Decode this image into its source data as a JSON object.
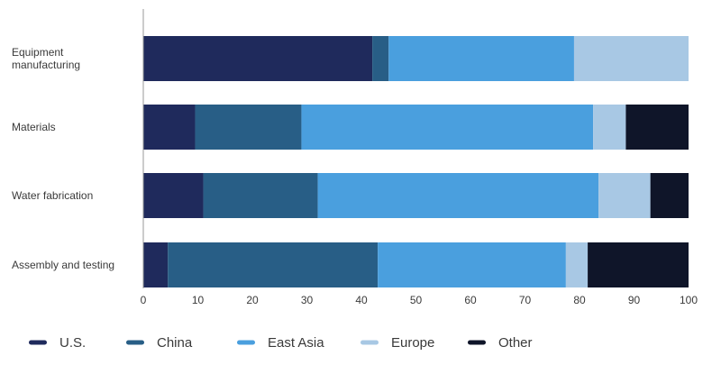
{
  "chart_data": {
    "type": "bar",
    "orientation": "horizontal",
    "stacked": true,
    "categories": [
      [
        "Equipment",
        "manufacturing"
      ],
      [
        "Materials"
      ],
      [
        "Water fabrication"
      ],
      [
        "Assembly and testing"
      ]
    ],
    "series": [
      {
        "name": "U.S.",
        "color": "#1f2a5c",
        "values": [
          42,
          9.5,
          11,
          4.5
        ]
      },
      {
        "name": "China",
        "color": "#285e86",
        "values": [
          3,
          19.5,
          21,
          38.5
        ]
      },
      {
        "name": "East Asia",
        "color": "#4a9fde",
        "values": [
          34,
          53.5,
          51.5,
          34.5
        ]
      },
      {
        "name": "Europe",
        "color": "#a8c8e4",
        "values": [
          21,
          6,
          9.5,
          4
        ]
      },
      {
        "name": "Other",
        "color": "#0f1529",
        "values": [
          0,
          11.5,
          7,
          18.5
        ]
      }
    ],
    "xlim": [
      0,
      100
    ],
    "xticks": [
      0,
      10,
      20,
      30,
      40,
      50,
      60,
      70,
      80,
      90,
      100
    ],
    "title": "",
    "xlabel": "",
    "ylabel": "",
    "grid": false,
    "legend_position": "bottom"
  }
}
